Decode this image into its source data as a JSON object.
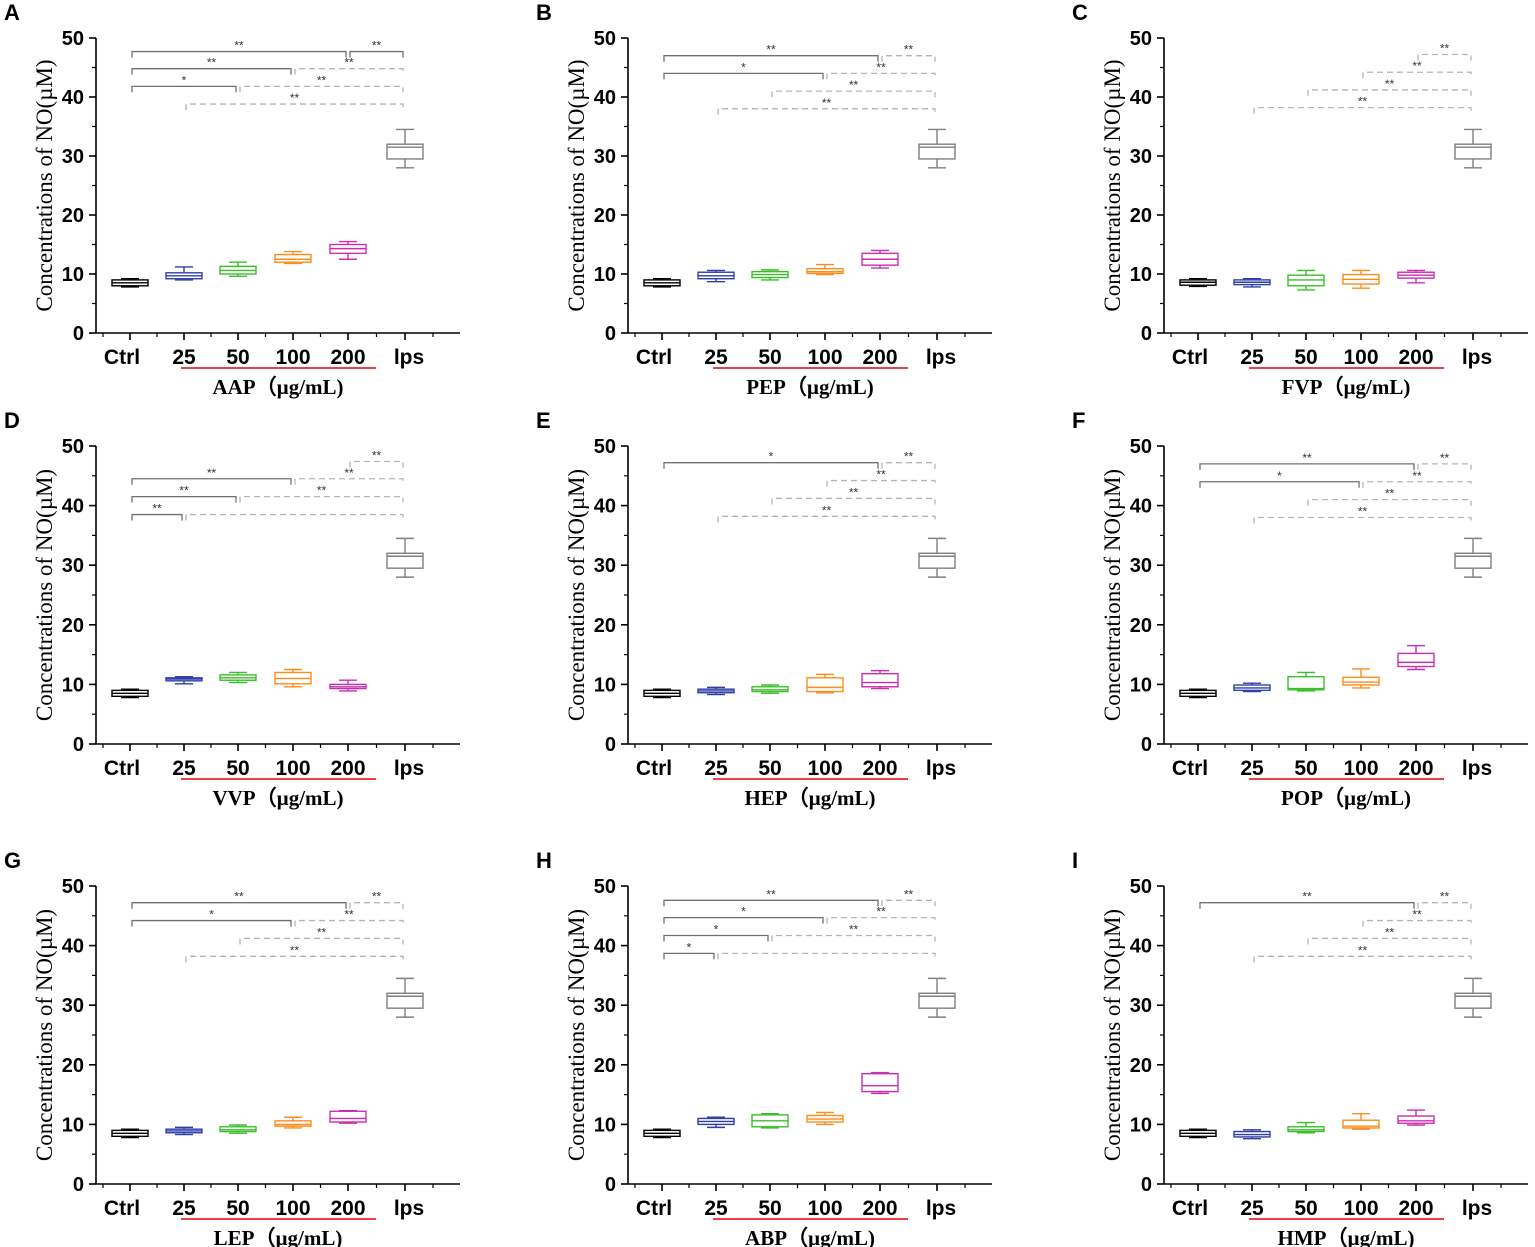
{
  "chart_data": [
    {
      "panel": "A",
      "type": "box",
      "ylabel": "Concentrations of NO(µM)",
      "xlabel": "AAP（µg/mL)",
      "categories": [
        "Ctrl",
        "25",
        "50",
        "100",
        "200",
        "lps"
      ],
      "ylim": [
        0,
        50
      ],
      "yticks": [
        0,
        10,
        20,
        30,
        40,
        50
      ],
      "boxes": [
        {
          "min": 7.8,
          "q1": 8.0,
          "median": 8.5,
          "q3": 9.0,
          "max": 9.2
        },
        {
          "min": 9.0,
          "q1": 9.2,
          "median": 9.7,
          "q3": 10.2,
          "max": 11.2
        },
        {
          "min": 9.6,
          "q1": 10.0,
          "median": 10.6,
          "q3": 11.3,
          "max": 12.0
        },
        {
          "min": 11.8,
          "q1": 12.0,
          "median": 12.5,
          "q3": 13.3,
          "max": 13.8
        },
        {
          "min": 12.5,
          "q1": 13.5,
          "median": 14.3,
          "q3": 15.0,
          "max": 15.5
        },
        {
          "min": 28.0,
          "q1": 29.5,
          "median": 31.5,
          "q3": 32.0,
          "max": 34.5
        }
      ],
      "comparisons": [
        {
          "from": 0,
          "to": 4,
          "level": 47.7,
          "label": "**",
          "style": "solid"
        },
        {
          "from": 4,
          "to": 5,
          "level": 47.7,
          "label": "**",
          "style": "solid"
        },
        {
          "from": 0,
          "to": 3,
          "level": 44.8,
          "label": "**",
          "style": "solid"
        },
        {
          "from": 3,
          "to": 5,
          "level": 44.8,
          "label": "**",
          "style": "dashed"
        },
        {
          "from": 0,
          "to": 2,
          "level": 41.8,
          "label": "*",
          "style": "solid"
        },
        {
          "from": 2,
          "to": 5,
          "level": 41.8,
          "label": "**",
          "style": "dashed"
        },
        {
          "from": 1,
          "to": 5,
          "level": 38.8,
          "label": "**",
          "style": "dashed"
        }
      ]
    },
    {
      "panel": "B",
      "type": "box",
      "ylabel": "Concentrations of NO(µM)",
      "xlabel": "PEP（µg/mL)",
      "categories": [
        "Ctrl",
        "25",
        "50",
        "100",
        "200",
        "lps"
      ],
      "ylim": [
        0,
        50
      ],
      "yticks": [
        0,
        10,
        20,
        30,
        40,
        50
      ],
      "boxes": [
        {
          "min": 7.8,
          "q1": 8.0,
          "median": 8.5,
          "q3": 9.0,
          "max": 9.2
        },
        {
          "min": 8.7,
          "q1": 9.2,
          "median": 9.7,
          "q3": 10.3,
          "max": 10.6
        },
        {
          "min": 9.0,
          "q1": 9.4,
          "median": 9.9,
          "q3": 10.4,
          "max": 10.7
        },
        {
          "min": 9.9,
          "q1": 10.1,
          "median": 10.4,
          "q3": 10.9,
          "max": 11.6
        },
        {
          "min": 11.0,
          "q1": 11.5,
          "median": 12.5,
          "q3": 13.5,
          "max": 14.0
        },
        {
          "min": 28.0,
          "q1": 29.5,
          "median": 31.5,
          "q3": 32.0,
          "max": 34.5
        }
      ],
      "comparisons": [
        {
          "from": 0,
          "to": 4,
          "level": 47.0,
          "label": "**",
          "style": "solid"
        },
        {
          "from": 4,
          "to": 5,
          "level": 47.0,
          "label": "**",
          "style": "dashed"
        },
        {
          "from": 0,
          "to": 3,
          "level": 44.0,
          "label": "*",
          "style": "solid"
        },
        {
          "from": 3,
          "to": 5,
          "level": 44.0,
          "label": "**",
          "style": "dashed"
        },
        {
          "from": 2,
          "to": 5,
          "level": 41.0,
          "label": "**",
          "style": "dashed"
        },
        {
          "from": 1,
          "to": 5,
          "level": 38.0,
          "label": "**",
          "style": "dashed"
        }
      ]
    },
    {
      "panel": "C",
      "type": "box",
      "ylabel": "Concentrations of NO(µM)",
      "xlabel": "FVP（µg/mL)",
      "categories": [
        "Ctrl",
        "25",
        "50",
        "100",
        "200",
        "lps"
      ],
      "ylim": [
        0,
        50
      ],
      "yticks": [
        0,
        10,
        20,
        30,
        40,
        50
      ],
      "boxes": [
        {
          "min": 7.9,
          "q1": 8.1,
          "median": 8.6,
          "q3": 9.0,
          "max": 9.2
        },
        {
          "min": 7.8,
          "q1": 8.2,
          "median": 8.6,
          "q3": 9.0,
          "max": 9.2
        },
        {
          "min": 7.3,
          "q1": 8.0,
          "median": 9.0,
          "q3": 9.8,
          "max": 10.6
        },
        {
          "min": 7.6,
          "q1": 8.3,
          "median": 9.1,
          "q3": 9.9,
          "max": 10.6
        },
        {
          "min": 8.5,
          "q1": 9.3,
          "median": 9.8,
          "q3": 10.3,
          "max": 10.6
        },
        {
          "min": 28.0,
          "q1": 29.5,
          "median": 31.5,
          "q3": 32.0,
          "max": 34.5
        }
      ],
      "comparisons": [
        {
          "from": 4,
          "to": 5,
          "level": 47.2,
          "label": "**",
          "style": "dashed"
        },
        {
          "from": 3,
          "to": 5,
          "level": 44.2,
          "label": "**",
          "style": "dashed"
        },
        {
          "from": 2,
          "to": 5,
          "level": 41.2,
          "label": "**",
          "style": "dashed"
        },
        {
          "from": 1,
          "to": 5,
          "level": 38.2,
          "label": "**",
          "style": "dashed"
        }
      ]
    },
    {
      "panel": "D",
      "type": "box",
      "ylabel": "Concentrations of NO(µM)",
      "xlabel": "VVP（µg/mL)",
      "categories": [
        "Ctrl",
        "25",
        "50",
        "100",
        "200",
        "lps"
      ],
      "ylim": [
        0,
        50
      ],
      "yticks": [
        0,
        10,
        20,
        30,
        40,
        50
      ],
      "boxes": [
        {
          "min": 7.8,
          "q1": 8.0,
          "median": 8.5,
          "q3": 9.0,
          "max": 9.2
        },
        {
          "min": 10.1,
          "q1": 10.6,
          "median": 10.9,
          "q3": 11.1,
          "max": 11.3
        },
        {
          "min": 10.3,
          "q1": 10.7,
          "median": 11.1,
          "q3": 11.6,
          "max": 12.0
        },
        {
          "min": 9.6,
          "q1": 10.1,
          "median": 11.0,
          "q3": 12.0,
          "max": 12.5
        },
        {
          "min": 8.9,
          "q1": 9.3,
          "median": 9.6,
          "q3": 10.0,
          "max": 10.7
        },
        {
          "min": 28.0,
          "q1": 29.5,
          "median": 31.5,
          "q3": 32.0,
          "max": 34.5
        }
      ],
      "comparisons": [
        {
          "from": 4,
          "to": 5,
          "level": 47.4,
          "label": "**",
          "style": "dashed"
        },
        {
          "from": 0,
          "to": 3,
          "level": 44.5,
          "label": "**",
          "style": "solid"
        },
        {
          "from": 3,
          "to": 5,
          "level": 44.5,
          "label": "**",
          "style": "dashed"
        },
        {
          "from": 0,
          "to": 2,
          "level": 41.5,
          "label": "**",
          "style": "solid"
        },
        {
          "from": 2,
          "to": 5,
          "level": 41.5,
          "label": "**",
          "style": "dashed"
        },
        {
          "from": 0,
          "to": 1,
          "level": 38.5,
          "label": "**",
          "style": "solid"
        },
        {
          "from": 1,
          "to": 5,
          "level": 38.5,
          "label": "",
          "style": "dashed"
        }
      ]
    },
    {
      "panel": "E",
      "type": "box",
      "ylabel": "Concentrations of NO(µM)",
      "xlabel": "HEP（µg/mL)",
      "categories": [
        "Ctrl",
        "25",
        "50",
        "100",
        "200",
        "lps"
      ],
      "ylim": [
        0,
        50
      ],
      "yticks": [
        0,
        10,
        20,
        30,
        40,
        50
      ],
      "boxes": [
        {
          "min": 7.8,
          "q1": 8.0,
          "median": 8.5,
          "q3": 9.0,
          "max": 9.2
        },
        {
          "min": 8.3,
          "q1": 8.6,
          "median": 8.9,
          "q3": 9.2,
          "max": 9.5
        },
        {
          "min": 8.5,
          "q1": 8.8,
          "median": 9.1,
          "q3": 9.6,
          "max": 9.9
        },
        {
          "min": 8.6,
          "q1": 8.8,
          "median": 9.5,
          "q3": 11.1,
          "max": 11.7
        },
        {
          "min": 9.3,
          "q1": 9.6,
          "median": 10.3,
          "q3": 11.8,
          "max": 12.3
        },
        {
          "min": 28.0,
          "q1": 29.5,
          "median": 31.5,
          "q3": 32.0,
          "max": 34.5
        }
      ],
      "comparisons": [
        {
          "from": 0,
          "to": 4,
          "level": 47.2,
          "label": "*",
          "style": "solid"
        },
        {
          "from": 4,
          "to": 5,
          "level": 47.2,
          "label": "**",
          "style": "dashed"
        },
        {
          "from": 3,
          "to": 5,
          "level": 44.2,
          "label": "**",
          "style": "dashed"
        },
        {
          "from": 2,
          "to": 5,
          "level": 41.2,
          "label": "**",
          "style": "dashed"
        },
        {
          "from": 1,
          "to": 5,
          "level": 38.2,
          "label": "**",
          "style": "dashed"
        }
      ]
    },
    {
      "panel": "F",
      "type": "box",
      "ylabel": "Concentrations of NO(µM)",
      "xlabel": "POP（µg/mL)",
      "categories": [
        "Ctrl",
        "25",
        "50",
        "100",
        "200",
        "lps"
      ],
      "ylim": [
        0,
        50
      ],
      "yticks": [
        0,
        10,
        20,
        30,
        40,
        50
      ],
      "boxes": [
        {
          "min": 7.8,
          "q1": 8.0,
          "median": 8.5,
          "q3": 9.0,
          "max": 9.2
        },
        {
          "min": 8.8,
          "q1": 9.0,
          "median": 9.4,
          "q3": 9.9,
          "max": 10.2
        },
        {
          "min": 8.9,
          "q1": 9.1,
          "median": 9.3,
          "q3": 11.3,
          "max": 12.0
        },
        {
          "min": 9.4,
          "q1": 9.9,
          "median": 10.4,
          "q3": 11.2,
          "max": 12.6
        },
        {
          "min": 12.5,
          "q1": 13.0,
          "median": 13.7,
          "q3": 15.2,
          "max": 16.5
        },
        {
          "min": 28.0,
          "q1": 29.5,
          "median": 31.5,
          "q3": 32.0,
          "max": 34.5
        }
      ],
      "comparisons": [
        {
          "from": 0,
          "to": 4,
          "level": 47.0,
          "label": "**",
          "style": "solid"
        },
        {
          "from": 4,
          "to": 5,
          "level": 47.0,
          "label": "**",
          "style": "dashed"
        },
        {
          "from": 0,
          "to": 3,
          "level": 44.0,
          "label": "*",
          "style": "solid"
        },
        {
          "from": 3,
          "to": 5,
          "level": 44.0,
          "label": "**",
          "style": "dashed"
        },
        {
          "from": 2,
          "to": 5,
          "level": 41.0,
          "label": "**",
          "style": "dashed"
        },
        {
          "from": 1,
          "to": 5,
          "level": 38.0,
          "label": "**",
          "style": "dashed"
        }
      ]
    },
    {
      "panel": "G",
      "type": "box",
      "ylabel": "Concentrations of NO(µM)",
      "xlabel": "LEP（µg/mL)",
      "categories": [
        "Ctrl",
        "25",
        "50",
        "100",
        "200",
        "lps"
      ],
      "ylim": [
        0,
        50
      ],
      "yticks": [
        0,
        10,
        20,
        30,
        40,
        50
      ],
      "boxes": [
        {
          "min": 7.8,
          "q1": 8.0,
          "median": 8.5,
          "q3": 9.0,
          "max": 9.2
        },
        {
          "min": 8.3,
          "q1": 8.6,
          "median": 8.9,
          "q3": 9.2,
          "max": 9.5
        },
        {
          "min": 8.5,
          "q1": 8.8,
          "median": 9.1,
          "q3": 9.6,
          "max": 9.9
        },
        {
          "min": 9.4,
          "q1": 9.7,
          "median": 10.0,
          "q3": 10.6,
          "max": 11.2
        },
        {
          "min": 10.2,
          "q1": 10.4,
          "median": 11.0,
          "q3": 12.2,
          "max": 12.3
        },
        {
          "min": 28.0,
          "q1": 29.5,
          "median": 31.5,
          "q3": 32.0,
          "max": 34.5
        }
      ],
      "comparisons": [
        {
          "from": 0,
          "to": 4,
          "level": 47.2,
          "label": "**",
          "style": "solid"
        },
        {
          "from": 4,
          "to": 5,
          "level": 47.2,
          "label": "**",
          "style": "dashed"
        },
        {
          "from": 0,
          "to": 3,
          "level": 44.2,
          "label": "*",
          "style": "solid"
        },
        {
          "from": 3,
          "to": 5,
          "level": 44.2,
          "label": "**",
          "style": "dashed"
        },
        {
          "from": 2,
          "to": 5,
          "level": 41.2,
          "label": "**",
          "style": "dashed"
        },
        {
          "from": 1,
          "to": 5,
          "level": 38.2,
          "label": "**",
          "style": "dashed"
        }
      ]
    },
    {
      "panel": "H",
      "type": "box",
      "ylabel": "Concentrations of NO(µM)",
      "xlabel": "ABP（µg/mL)",
      "categories": [
        "Ctrl",
        "25",
        "50",
        "100",
        "200",
        "lps"
      ],
      "ylim": [
        0,
        50
      ],
      "yticks": [
        0,
        10,
        20,
        30,
        40,
        50
      ],
      "boxes": [
        {
          "min": 7.8,
          "q1": 8.0,
          "median": 8.5,
          "q3": 9.0,
          "max": 9.2
        },
        {
          "min": 9.5,
          "q1": 10.0,
          "median": 10.5,
          "q3": 11.0,
          "max": 11.2
        },
        {
          "min": 9.4,
          "q1": 9.6,
          "median": 10.6,
          "q3": 11.6,
          "max": 11.8
        },
        {
          "min": 10.0,
          "q1": 10.4,
          "median": 10.9,
          "q3": 11.5,
          "max": 12.0
        },
        {
          "min": 15.2,
          "q1": 15.5,
          "median": 16.5,
          "q3": 18.5,
          "max": 18.7
        },
        {
          "min": 28.0,
          "q1": 29.5,
          "median": 31.5,
          "q3": 32.0,
          "max": 34.5
        }
      ],
      "comparisons": [
        {
          "from": 0,
          "to": 4,
          "level": 47.6,
          "label": "**",
          "style": "solid"
        },
        {
          "from": 4,
          "to": 5,
          "level": 47.6,
          "label": "**",
          "style": "dashed"
        },
        {
          "from": 0,
          "to": 3,
          "level": 44.7,
          "label": "*",
          "style": "solid"
        },
        {
          "from": 3,
          "to": 5,
          "level": 44.7,
          "label": "**",
          "style": "dashed"
        },
        {
          "from": 0,
          "to": 2,
          "level": 41.7,
          "label": "*",
          "style": "solid"
        },
        {
          "from": 2,
          "to": 5,
          "level": 41.7,
          "label": "**",
          "style": "dashed"
        },
        {
          "from": 0,
          "to": 1,
          "level": 38.7,
          "label": "*",
          "style": "solid"
        },
        {
          "from": 1,
          "to": 5,
          "level": 38.7,
          "label": "",
          "style": "dashed"
        }
      ]
    },
    {
      "panel": "I",
      "type": "box",
      "ylabel": "Concentrations of NO(µM)",
      "xlabel": "HMP（µg/mL)",
      "categories": [
        "Ctrl",
        "25",
        "50",
        "100",
        "200",
        "lps"
      ],
      "ylim": [
        0,
        50
      ],
      "yticks": [
        0,
        10,
        20,
        30,
        40,
        50
      ],
      "boxes": [
        {
          "min": 7.8,
          "q1": 8.0,
          "median": 8.5,
          "q3": 9.0,
          "max": 9.2
        },
        {
          "min": 7.6,
          "q1": 7.9,
          "median": 8.3,
          "q3": 8.8,
          "max": 9.1
        },
        {
          "min": 8.6,
          "q1": 8.8,
          "median": 9.1,
          "q3": 9.6,
          "max": 10.3
        },
        {
          "min": 9.2,
          "q1": 9.4,
          "median": 9.7,
          "q3": 10.7,
          "max": 11.8
        },
        {
          "min": 9.9,
          "q1": 10.2,
          "median": 10.6,
          "q3": 11.4,
          "max": 12.4
        },
        {
          "min": 28.0,
          "q1": 29.5,
          "median": 31.5,
          "q3": 32.0,
          "max": 34.5
        }
      ],
      "comparisons": [
        {
          "from": 0,
          "to": 4,
          "level": 47.2,
          "label": "**",
          "style": "solid"
        },
        {
          "from": 4,
          "to": 5,
          "level": 47.2,
          "label": "**",
          "style": "dashed"
        },
        {
          "from": 3,
          "to": 5,
          "level": 44.2,
          "label": "**",
          "style": "dashed"
        },
        {
          "from": 2,
          "to": 5,
          "level": 41.2,
          "label": "**",
          "style": "dashed"
        },
        {
          "from": 1,
          "to": 5,
          "level": 38.2,
          "label": "**",
          "style": "dashed"
        }
      ]
    }
  ],
  "series_colors": [
    "#000000",
    "#2e3fa8",
    "#3cbf2a",
    "#ff8c1a",
    "#cc2fae",
    "#7f7f7f"
  ],
  "underline_color": "#e8262a",
  "bracket_solid_color": "#707070",
  "bracket_dashed_color": "#b5b5b5"
}
